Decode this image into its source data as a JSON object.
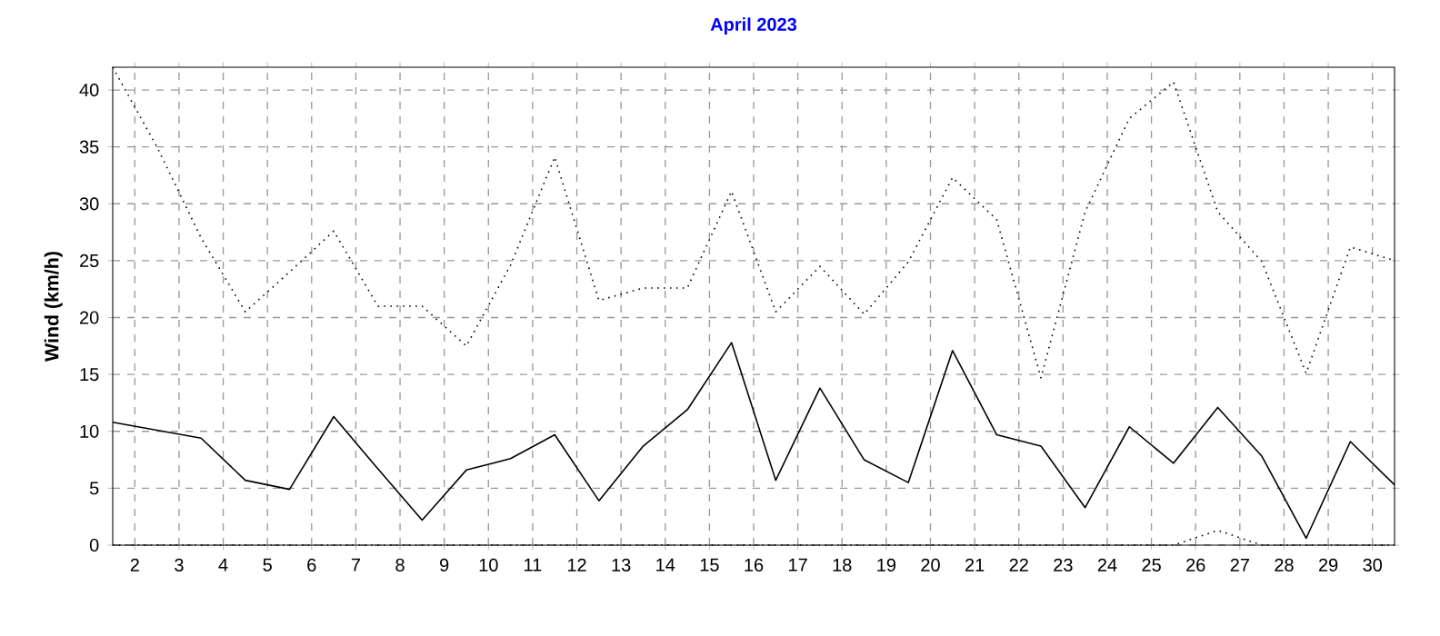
{
  "chart_data": {
    "type": "line",
    "title": "April 2023",
    "ylabel": "Wind  (km/h)",
    "x": [
      1.5,
      2.5,
      3.5,
      4.5,
      5.5,
      6.5,
      7.5,
      8.5,
      9.5,
      10.5,
      11.5,
      12.5,
      13.5,
      14.5,
      15.5,
      16.5,
      17.5,
      18.5,
      19.5,
      20.5,
      21.5,
      22.5,
      23.5,
      24.5,
      25.5,
      26.5,
      27.5,
      28.5,
      29.5,
      30.5
    ],
    "series": [
      {
        "color": "#000000",
        "line_style": "dotted",
        "values": [
          42.0,
          35.0,
          27.0,
          20.5,
          24.0,
          27.6,
          21.0,
          21.0,
          17.5,
          24.6,
          34.1,
          21.5,
          22.6,
          22.6,
          31.1,
          20.5,
          24.5,
          20.3,
          24.9,
          32.3,
          28.6,
          14.7,
          29.3,
          37.5,
          40.7,
          29.3,
          24.9,
          15.1,
          26.2,
          25.0
        ]
      },
      {
        "color": "#000000",
        "line_style": "solid",
        "values": [
          10.8,
          10.1,
          9.4,
          5.7,
          4.9,
          11.3,
          6.7,
          2.2,
          6.6,
          7.6,
          9.7,
          3.9,
          8.7,
          11.9,
          17.8,
          5.7,
          13.8,
          7.5,
          5.5,
          17.1,
          9.7,
          8.7,
          3.3,
          10.4,
          7.2,
          12.1,
          7.8,
          0.6,
          9.1,
          5.3
        ]
      },
      {
        "color": "#000000",
        "line_style": "dotted",
        "values": [
          0,
          0,
          0,
          0,
          0,
          0,
          0,
          0,
          0,
          0,
          0,
          0,
          0,
          0,
          0,
          0,
          0,
          0,
          0,
          0,
          0,
          0,
          0,
          0,
          0,
          1.3,
          0,
          0,
          0,
          0
        ]
      }
    ],
    "xlim": [
      1.5,
      30.5
    ],
    "ylim": [
      0,
      42
    ],
    "xticks": [
      2,
      3,
      4,
      5,
      6,
      7,
      8,
      9,
      10,
      11,
      12,
      13,
      14,
      15,
      16,
      17,
      18,
      19,
      20,
      21,
      22,
      23,
      24,
      25,
      26,
      27,
      28,
      29,
      30
    ],
    "yticks": [
      0,
      5,
      10,
      15,
      20,
      25,
      30,
      35,
      40
    ],
    "grid": true
  }
}
